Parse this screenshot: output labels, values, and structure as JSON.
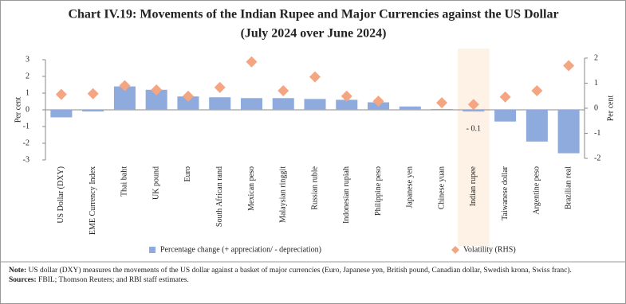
{
  "chart_data": {
    "type": "bar",
    "title": "Chart IV.19: Movements of the Indian Rupee and Major Currencies against the US Dollar",
    "subtitle": "(July 2024 over June 2024)",
    "y_label": "Per cent",
    "y2_label": "Per cent",
    "categories": [
      "US Dollar (DXY)",
      "EME Currency Index",
      "Thai baht",
      "UK pound",
      "Euro",
      "South African rand",
      "Mexican peso",
      "Malaysian ringgit",
      "Russian ruble",
      "Indonesian rupiah",
      "Philippine peso",
      "Japanese yen",
      "Chinese yuan",
      "Indian rupee",
      "Taiwanese dollar",
      "Argentine peso",
      "Brazilian real"
    ],
    "series": [
      {
        "name": "Percentage change (+ appreciation/ - depreciation)",
        "type": "bar",
        "color": "#8faadc",
        "values": [
          -0.45,
          -0.1,
          1.4,
          1.2,
          0.8,
          0.75,
          0.7,
          0.7,
          0.65,
          0.6,
          0.45,
          0.2,
          0.05,
          -0.1,
          -0.7,
          -1.9,
          -2.6
        ],
        "value_labels": [
          null,
          null,
          null,
          null,
          null,
          null,
          null,
          null,
          null,
          null,
          null,
          null,
          null,
          "- 0.1",
          null,
          null,
          null
        ]
      },
      {
        "name": "Volatility (RHS)",
        "type": "scatter",
        "axis": "y2",
        "color": "#f4a582",
        "values": [
          0.55,
          0.58,
          0.9,
          0.73,
          0.48,
          0.83,
          1.85,
          0.7,
          1.25,
          0.48,
          0.28,
          null,
          0.22,
          0.15,
          0.45,
          0.7,
          1.7
        ]
      }
    ],
    "ylim": [
      -3,
      3
    ],
    "yticks": [
      -3,
      -2,
      -1,
      0,
      1,
      2,
      3
    ],
    "y2lim": [
      -2,
      2
    ],
    "y2ticks": [
      -2,
      -1,
      0,
      1,
      2
    ],
    "grid": false,
    "notes": {
      "label": "Note:",
      "text": "US dollar (DXY) measures the movements of the US dollar against a basket of major currencies (Euro, Japanese yen, British pound, Canadian dollar, Swedish krona, Swiss franc)."
    },
    "sources": {
      "label": "Sources:",
      "text": "FBIL; Thomson Reuters; and RBI staff estimates."
    }
  }
}
